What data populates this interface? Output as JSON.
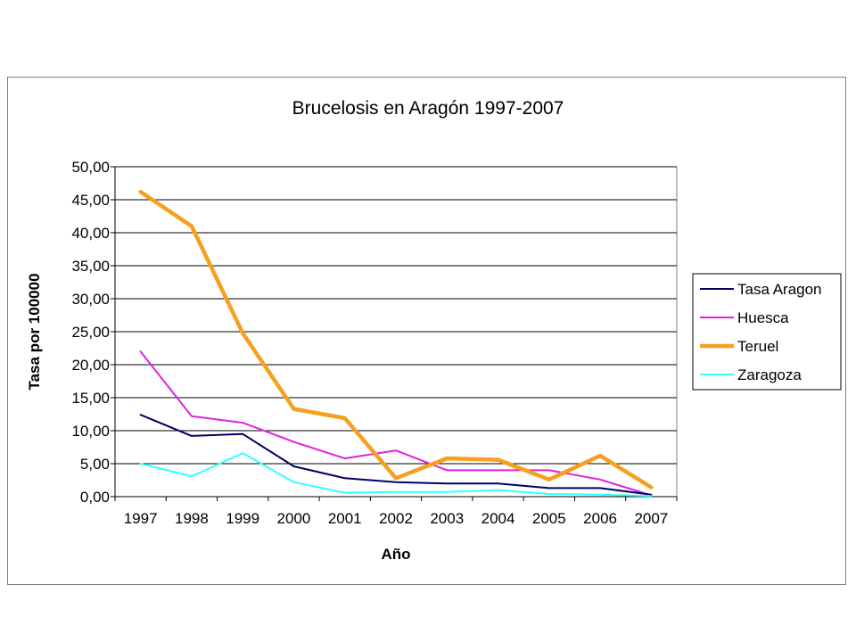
{
  "chart_data": {
    "type": "line",
    "title": "Brucelosis en Aragón 1997-2007",
    "xlabel": "Año",
    "ylabel": "Tasa por 100000",
    "categories": [
      "1997",
      "1998",
      "1999",
      "2000",
      "2001",
      "2002",
      "2003",
      "2004",
      "2005",
      "2006",
      "2007"
    ],
    "y_ticks": [
      "0,00",
      "5,00",
      "10,00",
      "15,00",
      "20,00",
      "25,00",
      "30,00",
      "35,00",
      "40,00",
      "45,00",
      "50,00"
    ],
    "ylim": [
      0,
      50
    ],
    "grid": true,
    "legend_position": "right",
    "series": [
      {
        "name": "Tasa Aragon",
        "color": "#000066",
        "values": [
          12.4,
          9.2,
          9.5,
          4.6,
          2.8,
          2.2,
          2.0,
          2.0,
          1.3,
          1.3,
          0.3
        ]
      },
      {
        "name": "Huesca",
        "color": "#e020e0",
        "values": [
          22.0,
          12.2,
          11.2,
          8.3,
          5.8,
          7.0,
          4.0,
          4.0,
          4.0,
          2.6,
          0.2
        ]
      },
      {
        "name": "Teruel",
        "color": "#f5a020",
        "values": [
          46.2,
          41.0,
          24.8,
          13.3,
          11.9,
          2.8,
          5.8,
          5.6,
          2.6,
          6.2,
          1.4
        ]
      },
      {
        "name": "Zaragoza",
        "color": "#33ffff",
        "values": [
          5.0,
          3.1,
          6.6,
          2.2,
          0.6,
          0.7,
          0.7,
          1.0,
          0.4,
          0.3,
          0.1
        ]
      }
    ]
  }
}
